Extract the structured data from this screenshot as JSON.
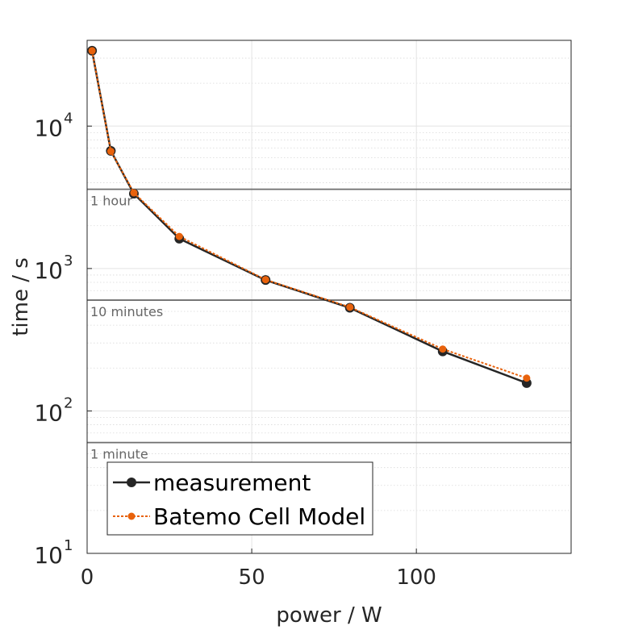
{
  "chart_data": {
    "type": "line",
    "xlabel": "power / W",
    "ylabel": "time / s",
    "xlim": [
      0,
      147
    ],
    "ylim": [
      10,
      40000
    ],
    "yscale": "log",
    "grid": true,
    "xticks": [
      0,
      50,
      100
    ],
    "yticks": [
      {
        "base": "10",
        "exp": "1",
        "value": 10
      },
      {
        "base": "10",
        "exp": "2",
        "value": 100
      },
      {
        "base": "10",
        "exp": "3",
        "value": 1000
      },
      {
        "base": "10",
        "exp": "4",
        "value": 10000
      }
    ],
    "reference_lines": [
      {
        "value": 3600,
        "label": "1 hour"
      },
      {
        "value": 600,
        "label": "10 minutes"
      },
      {
        "value": 60,
        "label": "1 minute"
      }
    ],
    "legend_position": "bottom-left",
    "series": [
      {
        "name": "measurement",
        "color": "#262626",
        "style": "solid",
        "x": [
          1.5,
          7.2,
          14.2,
          28.0,
          54.2,
          79.8,
          108.0,
          133.5
        ],
        "y": [
          33800,
          6700,
          3350,
          1620,
          830,
          530,
          262,
          157
        ]
      },
      {
        "name": "Batemo Cell Model",
        "color": "#e8620c",
        "style": "dotted",
        "x": [
          1.5,
          7.2,
          14.2,
          28.0,
          54.2,
          79.8,
          108.0,
          133.5
        ],
        "y": [
          33800,
          6650,
          3400,
          1680,
          835,
          535,
          272,
          170
        ]
      }
    ]
  }
}
